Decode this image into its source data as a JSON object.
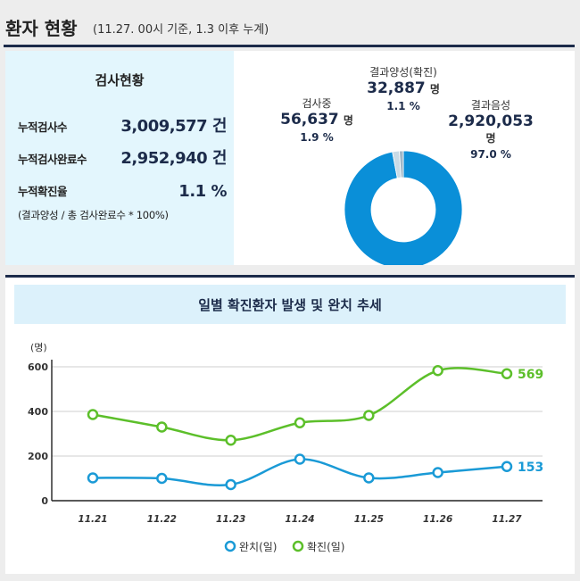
{
  "header": {
    "title": "환자 현황",
    "subtitle": "(11.27. 00시 기준, 1.3 이후 누계)"
  },
  "stats": {
    "title": "검사현황",
    "rows": [
      {
        "label": "누적검사수",
        "value": "3,009,577 건"
      },
      {
        "label": "누적검사완료수",
        "value": "2,952,940 건"
      },
      {
        "label": "누적확진율",
        "value": "1.1 %"
      }
    ],
    "note": "(결과양성 / 총 검사완료수 * 100%)"
  },
  "donut": {
    "positive": {
      "label": "결과양성(확진)",
      "value": "32,887",
      "unit": "명",
      "pct": "1.1 %"
    },
    "testing": {
      "label": "검사중",
      "value": "56,637",
      "unit": "명",
      "pct": "1.9 %"
    },
    "negative": {
      "label": "결과음성",
      "value": "2,920,053",
      "unit": "명",
      "pct": "97.0 %"
    },
    "colors": {
      "negative": "#0a8fd8",
      "testing": "#c9dbe6",
      "positive": "#9fb7c8"
    }
  },
  "chart_data": {
    "type": "line",
    "title": "일별 확진환자 발생 및 완치 추세",
    "ylabel": "(명)",
    "xlabel": "",
    "categories": [
      "11.21",
      "11.22",
      "11.23",
      "11.24",
      "11.25",
      "11.26",
      "11.27"
    ],
    "ylim": [
      0,
      600
    ],
    "yticks": [
      0,
      200,
      400,
      600
    ],
    "grid": true,
    "legend_position": "bottom",
    "series": [
      {
        "name": "완치(일)",
        "color": "#1a9ad6",
        "values": [
          102,
          100,
          72,
          186,
          102,
          126,
          153
        ],
        "end_label": "153"
      },
      {
        "name": "확진(일)",
        "color": "#5cbf2a",
        "values": [
          386,
          330,
          271,
          349,
          382,
          583,
          569
        ],
        "end_label": "569"
      }
    ]
  }
}
